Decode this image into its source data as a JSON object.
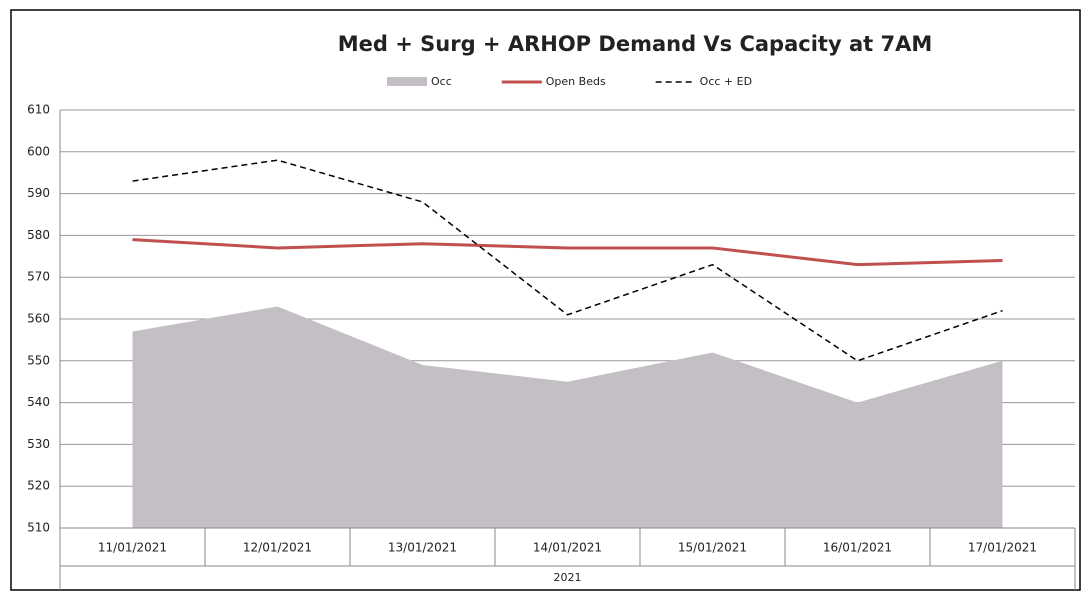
{
  "chart_data": {
    "type": "line",
    "title": "Med + Surg + ARHOP Demand Vs Capacity at 7AM",
    "categories": [
      "11/01/2021",
      "12/01/2021",
      "13/01/2021",
      "14/01/2021",
      "15/01/2021",
      "16/01/2021",
      "17/01/2021"
    ],
    "category_group": "2021",
    "series": [
      {
        "name": "Occ",
        "color": "#c4bfc4",
        "style": "area",
        "values": [
          557,
          563,
          549,
          545,
          552,
          540,
          550
        ]
      },
      {
        "name": "Open Beds",
        "color": "#c0504d",
        "style": "solid",
        "values": [
          579,
          577,
          578,
          577,
          577,
          573,
          574
        ]
      },
      {
        "name": "Occ + ED",
        "color": "#000000",
        "style": "dashed",
        "values": [
          593,
          598,
          588,
          561,
          573,
          550,
          562
        ]
      }
    ],
    "ylim": [
      510,
      610
    ],
    "yticks": [
      510,
      520,
      530,
      540,
      550,
      560,
      570,
      580,
      590,
      600,
      610
    ],
    "grid": true,
    "legend": "top"
  }
}
